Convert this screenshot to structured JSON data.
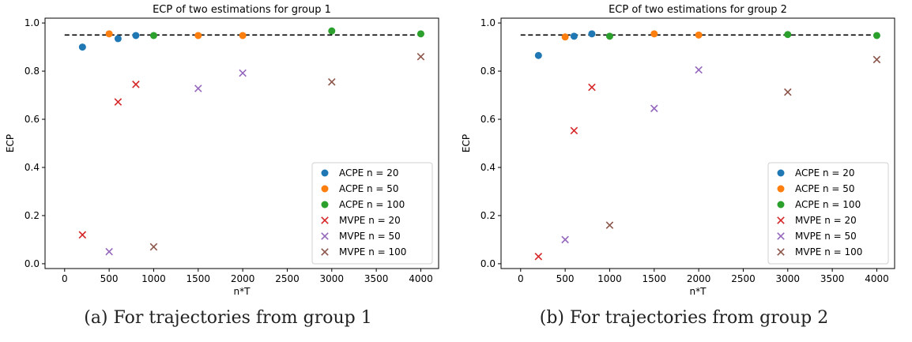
{
  "chart_data": [
    {
      "type": "scatter",
      "title": "ECP of two estimations for group 1",
      "xlabel": "n*T",
      "ylabel": "ECP",
      "xlim": [
        -220,
        4200
      ],
      "ylim": [
        -0.02,
        1.02
      ],
      "xticks": [
        0,
        500,
        1000,
        1500,
        2000,
        2500,
        3000,
        3500,
        4000
      ],
      "yticks": [
        0.0,
        0.2,
        0.4,
        0.6,
        0.8,
        1.0
      ],
      "grid": false,
      "legend_position": "lower right",
      "reference_line": {
        "y": 0.95,
        "x_range": [
          0,
          4000
        ],
        "style": "dashed"
      },
      "series": [
        {
          "name": "ACPE n = 20",
          "marker": "circle",
          "color": "#1f77b4",
          "points": [
            [
              200,
              0.9
            ],
            [
              600,
              0.935
            ],
            [
              800,
              0.948
            ]
          ]
        },
        {
          "name": "ACPE n = 50",
          "marker": "circle",
          "color": "#ff7f0e",
          "points": [
            [
              500,
              0.955
            ],
            [
              1500,
              0.948
            ],
            [
              2000,
              0.948
            ]
          ]
        },
        {
          "name": "ACPE n = 100",
          "marker": "circle",
          "color": "#2ca02c",
          "points": [
            [
              1000,
              0.948
            ],
            [
              3000,
              0.967
            ],
            [
              4000,
              0.955
            ]
          ]
        },
        {
          "name": "MVPE n = 20",
          "marker": "x",
          "color": "#d62728",
          "points": [
            [
              200,
              0.12
            ],
            [
              600,
              0.672
            ],
            [
              800,
              0.745
            ]
          ]
        },
        {
          "name": "MVPE n = 50",
          "marker": "x",
          "color": "#9467bd",
          "points": [
            [
              500,
              0.05
            ],
            [
              1500,
              0.728
            ],
            [
              2000,
              0.792
            ]
          ]
        },
        {
          "name": "MVPE n = 100",
          "marker": "x",
          "color": "#8c564b",
          "points": [
            [
              1000,
              0.07
            ],
            [
              3000,
              0.755
            ],
            [
              4000,
              0.86
            ]
          ]
        }
      ]
    },
    {
      "type": "scatter",
      "title": "ECP of two estimations for group 2",
      "xlabel": "n*T",
      "ylabel": "ECP",
      "xlim": [
        -220,
        4200
      ],
      "ylim": [
        -0.02,
        1.02
      ],
      "xticks": [
        0,
        500,
        1000,
        1500,
        2000,
        2500,
        3000,
        3500,
        4000
      ],
      "yticks": [
        0.0,
        0.2,
        0.4,
        0.6,
        0.8,
        1.0
      ],
      "grid": false,
      "legend_position": "lower right",
      "reference_line": {
        "y": 0.95,
        "x_range": [
          0,
          4000
        ],
        "style": "dashed"
      },
      "series": [
        {
          "name": "ACPE n = 20",
          "marker": "circle",
          "color": "#1f77b4",
          "points": [
            [
              200,
              0.865
            ],
            [
              600,
              0.945
            ],
            [
              800,
              0.955
            ]
          ]
        },
        {
          "name": "ACPE n = 50",
          "marker": "circle",
          "color": "#ff7f0e",
          "points": [
            [
              500,
              0.942
            ],
            [
              1500,
              0.955
            ],
            [
              2000,
              0.95
            ]
          ]
        },
        {
          "name": "ACPE n = 100",
          "marker": "circle",
          "color": "#2ca02c",
          "points": [
            [
              1000,
              0.945
            ],
            [
              3000,
              0.952
            ],
            [
              4000,
              0.948
            ]
          ]
        },
        {
          "name": "MVPE n = 20",
          "marker": "x",
          "color": "#d62728",
          "points": [
            [
              200,
              0.03
            ],
            [
              600,
              0.553
            ],
            [
              800,
              0.733
            ]
          ]
        },
        {
          "name": "MVPE n = 50",
          "marker": "x",
          "color": "#9467bd",
          "points": [
            [
              500,
              0.1
            ],
            [
              1500,
              0.645
            ],
            [
              2000,
              0.805
            ]
          ]
        },
        {
          "name": "MVPE n = 100",
          "marker": "x",
          "color": "#8c564b",
          "points": [
            [
              1000,
              0.16
            ],
            [
              3000,
              0.713
            ],
            [
              4000,
              0.848
            ]
          ]
        }
      ]
    }
  ],
  "captions": [
    "(a) For trajectories from group 1",
    "(b) For trajectories from group 2"
  ]
}
